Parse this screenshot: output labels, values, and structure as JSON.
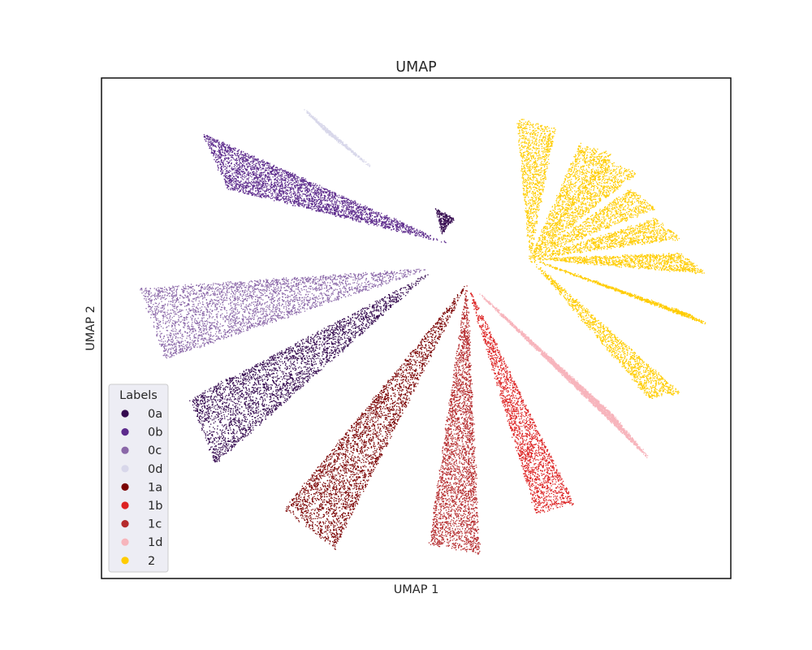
{
  "chart_data": {
    "type": "scatter",
    "title": "UMAP",
    "xlabel": "UMAP 1",
    "ylabel": "UMAP 2",
    "ticks": "none",
    "grid": false,
    "legend": {
      "title": "Labels",
      "placement": "lower-left",
      "entries": [
        "0a",
        "0b",
        "0c",
        "0d",
        "1a",
        "1b",
        "1c",
        "1d",
        "2"
      ]
    },
    "series": [
      {
        "name": "0a",
        "color": "#34094f",
        "lobes": [
          {
            "apex": [
              0.52,
              0.61
            ],
            "ends": [
              [
                0.14,
                0.36
              ],
              [
                0.18,
                0.23
              ]
            ]
          },
          {
            "apex": [
              0.56,
              0.72
            ],
            "ends": [
              [
                0.53,
                0.74
              ],
              [
                0.54,
                0.69
              ]
            ]
          }
        ]
      },
      {
        "name": "0b",
        "color": "#5c2a8c",
        "lobes": [
          {
            "apex": [
              0.55,
              0.67
            ],
            "ends": [
              [
                0.16,
                0.89
              ],
              [
                0.2,
                0.78
              ]
            ]
          }
        ]
      },
      {
        "name": "0c",
        "color": "#8a67a8",
        "lobes": [
          {
            "apex": [
              0.52,
              0.62
            ],
            "ends": [
              [
                0.06,
                0.58
              ],
              [
                0.1,
                0.44
              ]
            ]
          }
        ]
      },
      {
        "name": "0d",
        "color": "#d8d7ea",
        "lobes": [
          {
            "apex": [
              0.43,
              0.82
            ],
            "ends": [
              [
                0.32,
                0.94
              ],
              [
                0.35,
                0.9
              ]
            ]
          }
        ]
      },
      {
        "name": "1a",
        "color": "#7a0000",
        "lobes": [
          {
            "apex": [
              0.58,
              0.59
            ],
            "ends": [
              [
                0.29,
                0.14
              ],
              [
                0.37,
                0.06
              ]
            ]
          }
        ]
      },
      {
        "name": "1b",
        "color": "#dd2222",
        "lobes": [
          {
            "apex": [
              0.58,
              0.59
            ],
            "ends": [
              [
                0.69,
                0.13
              ],
              [
                0.75,
                0.15
              ]
            ]
          }
        ]
      },
      {
        "name": "1c",
        "color": "#b52a2c",
        "lobes": [
          {
            "apex": [
              0.58,
              0.59
            ],
            "ends": [
              [
                0.52,
                0.07
              ],
              [
                0.6,
                0.05
              ]
            ]
          }
        ]
      },
      {
        "name": "1d",
        "color": "#f7b5bc",
        "lobes": [
          {
            "apex": [
              0.6,
              0.57
            ],
            "ends": [
              [
                0.81,
                0.33
              ],
              [
                0.87,
                0.24
              ]
            ]
          }
        ]
      },
      {
        "name": "2",
        "color": "#ffcc00",
        "lobes": [
          {
            "apex": [
              0.68,
              0.64
            ],
            "ends": [
              [
                0.66,
                0.92
              ],
              [
                0.72,
                0.9
              ]
            ]
          },
          {
            "apex": [
              0.68,
              0.64
            ],
            "ends": [
              [
                0.76,
                0.87
              ],
              [
                0.81,
                0.85
              ]
            ]
          },
          {
            "apex": [
              0.68,
              0.64
            ],
            "ends": [
              [
                0.8,
                0.84
              ],
              [
                0.85,
                0.81
              ]
            ]
          },
          {
            "apex": [
              0.68,
              0.64
            ],
            "ends": [
              [
                0.84,
                0.78
              ],
              [
                0.88,
                0.74
              ]
            ]
          },
          {
            "apex": [
              0.68,
              0.64
            ],
            "ends": [
              [
                0.88,
                0.72
              ],
              [
                0.92,
                0.68
              ]
            ]
          },
          {
            "apex": [
              0.68,
              0.64
            ],
            "ends": [
              [
                0.92,
                0.65
              ],
              [
                0.96,
                0.61
              ]
            ]
          },
          {
            "apex": [
              0.68,
              0.64
            ],
            "ends": [
              [
                0.93,
                0.53
              ],
              [
                0.96,
                0.51
              ]
            ]
          },
          {
            "apex": [
              0.68,
              0.64
            ],
            "ends": [
              [
                0.87,
                0.36
              ],
              [
                0.92,
                0.37
              ]
            ]
          }
        ]
      }
    ]
  }
}
